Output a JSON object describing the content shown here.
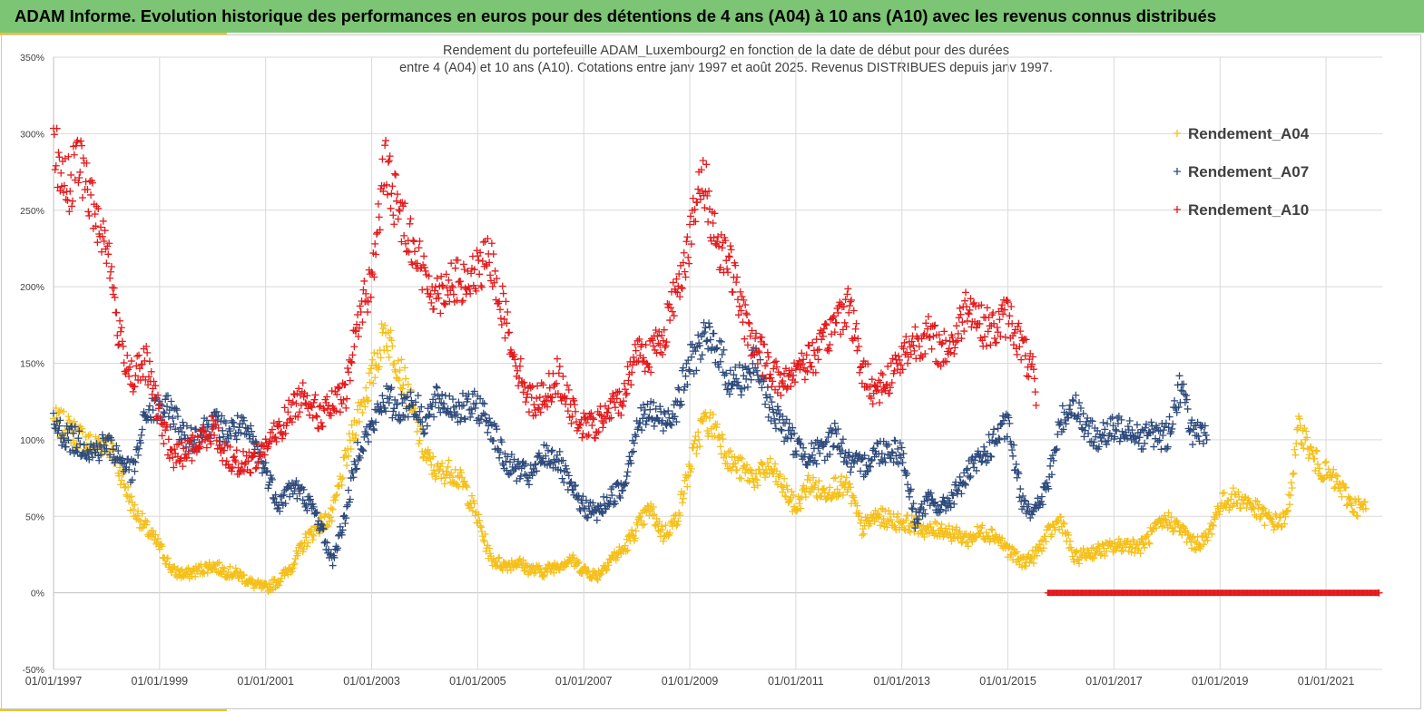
{
  "header": {
    "banner_title": "ADAM Informe. Evolution historique des performances en euros pour des détentions de 4 ans (A04) à 10 ans (A10) avec les revenus connus distribués"
  },
  "chart_data": {
    "type": "scatter",
    "title_line1": "Rendement du portefeuille ADAM_Luxembourg2  en fonction de la date de début pour des durées",
    "title_line2": "entre 4 (A04) et 10 ans (A10). Cotations  entre janv 1997 et août 2025. Revenus DISTRIBUES depuis janv 1997.",
    "xlabel": "",
    "ylabel": "",
    "x_range": [
      "01/01/1997",
      "01/01/2022"
    ],
    "ylim": [
      -50,
      350
    ],
    "y_ticks": [
      "-50%",
      "0%",
      "50%",
      "100%",
      "150%",
      "200%",
      "250%",
      "300%",
      "350%"
    ],
    "x_ticks": [
      "01/01/1997",
      "01/01/1999",
      "01/01/2001",
      "01/01/2003",
      "01/01/2005",
      "01/01/2007",
      "01/01/2009",
      "01/01/2011",
      "01/01/2013",
      "01/01/2015",
      "01/01/2017",
      "01/01/2019",
      "01/01/2021"
    ],
    "grid": true,
    "legend_position": "top-right",
    "marker": "+",
    "series": [
      {
        "name": "Rendement_A04",
        "color": "#f5c01b",
        "points": [
          [
            "1997-01",
            112
          ],
          [
            "1997-04",
            108
          ],
          [
            "1997-07",
            102
          ],
          [
            "1997-10",
            95
          ],
          [
            "1998-01",
            100
          ],
          [
            "1998-04",
            80
          ],
          [
            "1998-07",
            55
          ],
          [
            "1998-10",
            42
          ],
          [
            "1999-01",
            30
          ],
          [
            "1999-04",
            14
          ],
          [
            "1999-07",
            12
          ],
          [
            "1999-10",
            15
          ],
          [
            "2000-01",
            18
          ],
          [
            "2000-04",
            14
          ],
          [
            "2000-07",
            12
          ],
          [
            "2000-10",
            6
          ],
          [
            "2001-01",
            3
          ],
          [
            "2001-04",
            8
          ],
          [
            "2001-07",
            18
          ],
          [
            "2001-10",
            34
          ],
          [
            "2002-01",
            44
          ],
          [
            "2002-04",
            50
          ],
          [
            "2002-07",
            85
          ],
          [
            "2002-10",
            118
          ],
          [
            "2003-01",
            140
          ],
          [
            "2003-04",
            172
          ],
          [
            "2003-07",
            150
          ],
          [
            "2003-10",
            122
          ],
          [
            "2004-01",
            90
          ],
          [
            "2004-04",
            78
          ],
          [
            "2004-07",
            80
          ],
          [
            "2004-10",
            70
          ],
          [
            "2005-01",
            48
          ],
          [
            "2005-04",
            22
          ],
          [
            "2005-07",
            18
          ],
          [
            "2005-10",
            20
          ],
          [
            "2006-01",
            15
          ],
          [
            "2006-04",
            14
          ],
          [
            "2006-07",
            18
          ],
          [
            "2006-10",
            22
          ],
          [
            "2007-01",
            15
          ],
          [
            "2007-04",
            11
          ],
          [
            "2007-07",
            22
          ],
          [
            "2007-10",
            28
          ],
          [
            "2008-01",
            42
          ],
          [
            "2008-04",
            55
          ],
          [
            "2008-07",
            38
          ],
          [
            "2008-10",
            48
          ],
          [
            "2009-01",
            82
          ],
          [
            "2009-04",
            112
          ],
          [
            "2009-07",
            108
          ],
          [
            "2009-10",
            86
          ],
          [
            "2010-01",
            80
          ],
          [
            "2010-04",
            75
          ],
          [
            "2010-07",
            82
          ],
          [
            "2010-10",
            70
          ],
          [
            "2011-01",
            55
          ],
          [
            "2011-04",
            72
          ],
          [
            "2011-07",
            65
          ],
          [
            "2011-10",
            70
          ],
          [
            "2012-01",
            68
          ],
          [
            "2012-04",
            42
          ],
          [
            "2012-07",
            50
          ],
          [
            "2012-10",
            48
          ],
          [
            "2013-01",
            46
          ],
          [
            "2013-04",
            45
          ],
          [
            "2013-07",
            40
          ],
          [
            "2013-10",
            42
          ],
          [
            "2014-01",
            38
          ],
          [
            "2014-04",
            35
          ],
          [
            "2014-07",
            40
          ],
          [
            "2014-10",
            38
          ],
          [
            "2015-01",
            28
          ],
          [
            "2015-04",
            20
          ],
          [
            "2015-07",
            24
          ],
          [
            "2015-10",
            38
          ],
          [
            "2016-01",
            48
          ],
          [
            "2016-04",
            22
          ],
          [
            "2016-07",
            26
          ],
          [
            "2016-10",
            28
          ],
          [
            "2017-01",
            30
          ],
          [
            "2017-04",
            32
          ],
          [
            "2017-07",
            30
          ],
          [
            "2017-10",
            40
          ],
          [
            "2018-01",
            48
          ],
          [
            "2018-04",
            42
          ],
          [
            "2018-07",
            32
          ],
          [
            "2018-10",
            35
          ],
          [
            "2019-01",
            58
          ],
          [
            "2019-04",
            62
          ],
          [
            "2019-07",
            60
          ],
          [
            "2019-10",
            52
          ],
          [
            "2020-01",
            46
          ],
          [
            "2020-04",
            48
          ],
          [
            "2020-07",
            110
          ],
          [
            "2020-10",
            88
          ],
          [
            "2021-01",
            78
          ],
          [
            "2021-04",
            70
          ],
          [
            "2021-07",
            57
          ],
          [
            "2021-10",
            55
          ]
        ]
      },
      {
        "name": "Rendement_A07",
        "color": "#2f4b7c",
        "points": [
          [
            "1997-01",
            110
          ],
          [
            "1997-04",
            102
          ],
          [
            "1997-07",
            98
          ],
          [
            "1997-10",
            92
          ],
          [
            "1998-01",
            98
          ],
          [
            "1998-04",
            88
          ],
          [
            "1998-07",
            78
          ],
          [
            "1998-10",
            118
          ],
          [
            "1999-01",
            120
          ],
          [
            "1999-04",
            118
          ],
          [
            "1999-07",
            100
          ],
          [
            "1999-10",
            104
          ],
          [
            "2000-01",
            112
          ],
          [
            "2000-04",
            105
          ],
          [
            "2000-07",
            108
          ],
          [
            "2000-10",
            100
          ],
          [
            "2001-01",
            80
          ],
          [
            "2001-04",
            58
          ],
          [
            "2001-07",
            70
          ],
          [
            "2001-10",
            62
          ],
          [
            "2002-01",
            48
          ],
          [
            "2002-04",
            20
          ],
          [
            "2002-07",
            50
          ],
          [
            "2002-10",
            95
          ],
          [
            "2003-01",
            108
          ],
          [
            "2003-04",
            128
          ],
          [
            "2003-07",
            120
          ],
          [
            "2003-10",
            126
          ],
          [
            "2004-01",
            112
          ],
          [
            "2004-04",
            126
          ],
          [
            "2004-07",
            122
          ],
          [
            "2004-10",
            120
          ],
          [
            "2005-01",
            122
          ],
          [
            "2005-04",
            110
          ],
          [
            "2005-07",
            86
          ],
          [
            "2005-10",
            80
          ],
          [
            "2006-01",
            76
          ],
          [
            "2006-04",
            90
          ],
          [
            "2006-07",
            88
          ],
          [
            "2006-10",
            68
          ],
          [
            "2007-01",
            56
          ],
          [
            "2007-04",
            52
          ],
          [
            "2007-07",
            62
          ],
          [
            "2007-10",
            70
          ],
          [
            "2008-01",
            110
          ],
          [
            "2008-04",
            118
          ],
          [
            "2008-07",
            112
          ],
          [
            "2008-10",
            122
          ],
          [
            "2009-01",
            150
          ],
          [
            "2009-04",
            165
          ],
          [
            "2009-07",
            162
          ],
          [
            "2009-10",
            138
          ],
          [
            "2010-01",
            140
          ],
          [
            "2010-04",
            150
          ],
          [
            "2010-07",
            122
          ],
          [
            "2010-10",
            110
          ],
          [
            "2011-01",
            96
          ],
          [
            "2011-04",
            90
          ],
          [
            "2011-07",
            92
          ],
          [
            "2011-10",
            105
          ],
          [
            "2012-01",
            85
          ],
          [
            "2012-04",
            82
          ],
          [
            "2012-07",
            92
          ],
          [
            "2012-10",
            94
          ],
          [
            "2013-01",
            92
          ],
          [
            "2013-04",
            48
          ],
          [
            "2013-07",
            60
          ],
          [
            "2013-10",
            55
          ],
          [
            "2014-01",
            65
          ],
          [
            "2014-04",
            78
          ],
          [
            "2014-07",
            88
          ],
          [
            "2014-10",
            100
          ],
          [
            "2015-01",
            110
          ],
          [
            "2015-04",
            62
          ],
          [
            "2015-07",
            52
          ],
          [
            "2015-10",
            70
          ],
          [
            "2016-01",
            112
          ],
          [
            "2016-04",
            125
          ],
          [
            "2016-07",
            105
          ],
          [
            "2016-10",
            102
          ],
          [
            "2017-01",
            106
          ],
          [
            "2017-04",
            110
          ],
          [
            "2017-07",
            102
          ],
          [
            "2017-10",
            104
          ],
          [
            "2018-01",
            102
          ],
          [
            "2018-04",
            135
          ],
          [
            "2018-07",
            104
          ],
          [
            "2018-10",
            100
          ]
        ]
      },
      {
        "name": "Rendement_A10",
        "color": "#e41a1c",
        "points": [
          [
            "1997-01",
            290
          ],
          [
            "1997-04",
            265
          ],
          [
            "1997-07",
            282
          ],
          [
            "1997-10",
            250
          ],
          [
            "1998-01",
            230
          ],
          [
            "1998-04",
            165
          ],
          [
            "1998-07",
            140
          ],
          [
            "1998-10",
            150
          ],
          [
            "1999-01",
            115
          ],
          [
            "1999-04",
            88
          ],
          [
            "1999-07",
            92
          ],
          [
            "1999-10",
            98
          ],
          [
            "2000-01",
            108
          ],
          [
            "2000-04",
            90
          ],
          [
            "2000-07",
            84
          ],
          [
            "2000-10",
            86
          ],
          [
            "2001-01",
            96
          ],
          [
            "2001-04",
            106
          ],
          [
            "2001-07",
            120
          ],
          [
            "2001-10",
            132
          ],
          [
            "2002-01",
            115
          ],
          [
            "2002-04",
            122
          ],
          [
            "2002-07",
            128
          ],
          [
            "2002-10",
            180
          ],
          [
            "2003-01",
            205
          ],
          [
            "2003-04",
            280
          ],
          [
            "2003-07",
            250
          ],
          [
            "2003-10",
            232
          ],
          [
            "2004-01",
            205
          ],
          [
            "2004-04",
            195
          ],
          [
            "2004-07",
            205
          ],
          [
            "2004-10",
            200
          ],
          [
            "2005-01",
            210
          ],
          [
            "2005-04",
            218
          ],
          [
            "2005-07",
            182
          ],
          [
            "2005-10",
            148
          ],
          [
            "2006-01",
            125
          ],
          [
            "2006-04",
            128
          ],
          [
            "2006-07",
            142
          ],
          [
            "2006-10",
            120
          ],
          [
            "2007-01",
            108
          ],
          [
            "2007-04",
            110
          ],
          [
            "2007-07",
            120
          ],
          [
            "2007-10",
            128
          ],
          [
            "2008-01",
            160
          ],
          [
            "2008-04",
            155
          ],
          [
            "2008-07",
            168
          ],
          [
            "2008-10",
            198
          ],
          [
            "2009-01",
            232
          ],
          [
            "2009-04",
            272
          ],
          [
            "2009-07",
            230
          ],
          [
            "2009-10",
            218
          ],
          [
            "2010-01",
            180
          ],
          [
            "2010-04",
            160
          ],
          [
            "2010-07",
            148
          ],
          [
            "2010-10",
            135
          ],
          [
            "2011-01",
            148
          ],
          [
            "2011-04",
            152
          ],
          [
            "2011-07",
            160
          ],
          [
            "2011-10",
            178
          ],
          [
            "2012-01",
            190
          ],
          [
            "2012-04",
            145
          ],
          [
            "2012-07",
            132
          ],
          [
            "2012-10",
            140
          ],
          [
            "2013-01",
            155
          ],
          [
            "2013-04",
            165
          ],
          [
            "2013-07",
            168
          ],
          [
            "2013-10",
            158
          ],
          [
            "2014-01",
            165
          ],
          [
            "2014-04",
            192
          ],
          [
            "2014-07",
            175
          ],
          [
            "2014-10",
            172
          ],
          [
            "2015-01",
            182
          ],
          [
            "2015-04",
            162
          ],
          [
            "2015-07",
            140
          ],
          [
            "2015-10",
            0
          ],
          [
            "2016-07",
            0
          ],
          [
            "2017-07",
            0
          ],
          [
            "2018-07",
            0
          ],
          [
            "2019-07",
            0
          ],
          [
            "2020-07",
            0
          ],
          [
            "2021-07",
            0
          ],
          [
            "2022-01",
            0
          ]
        ]
      }
    ]
  }
}
